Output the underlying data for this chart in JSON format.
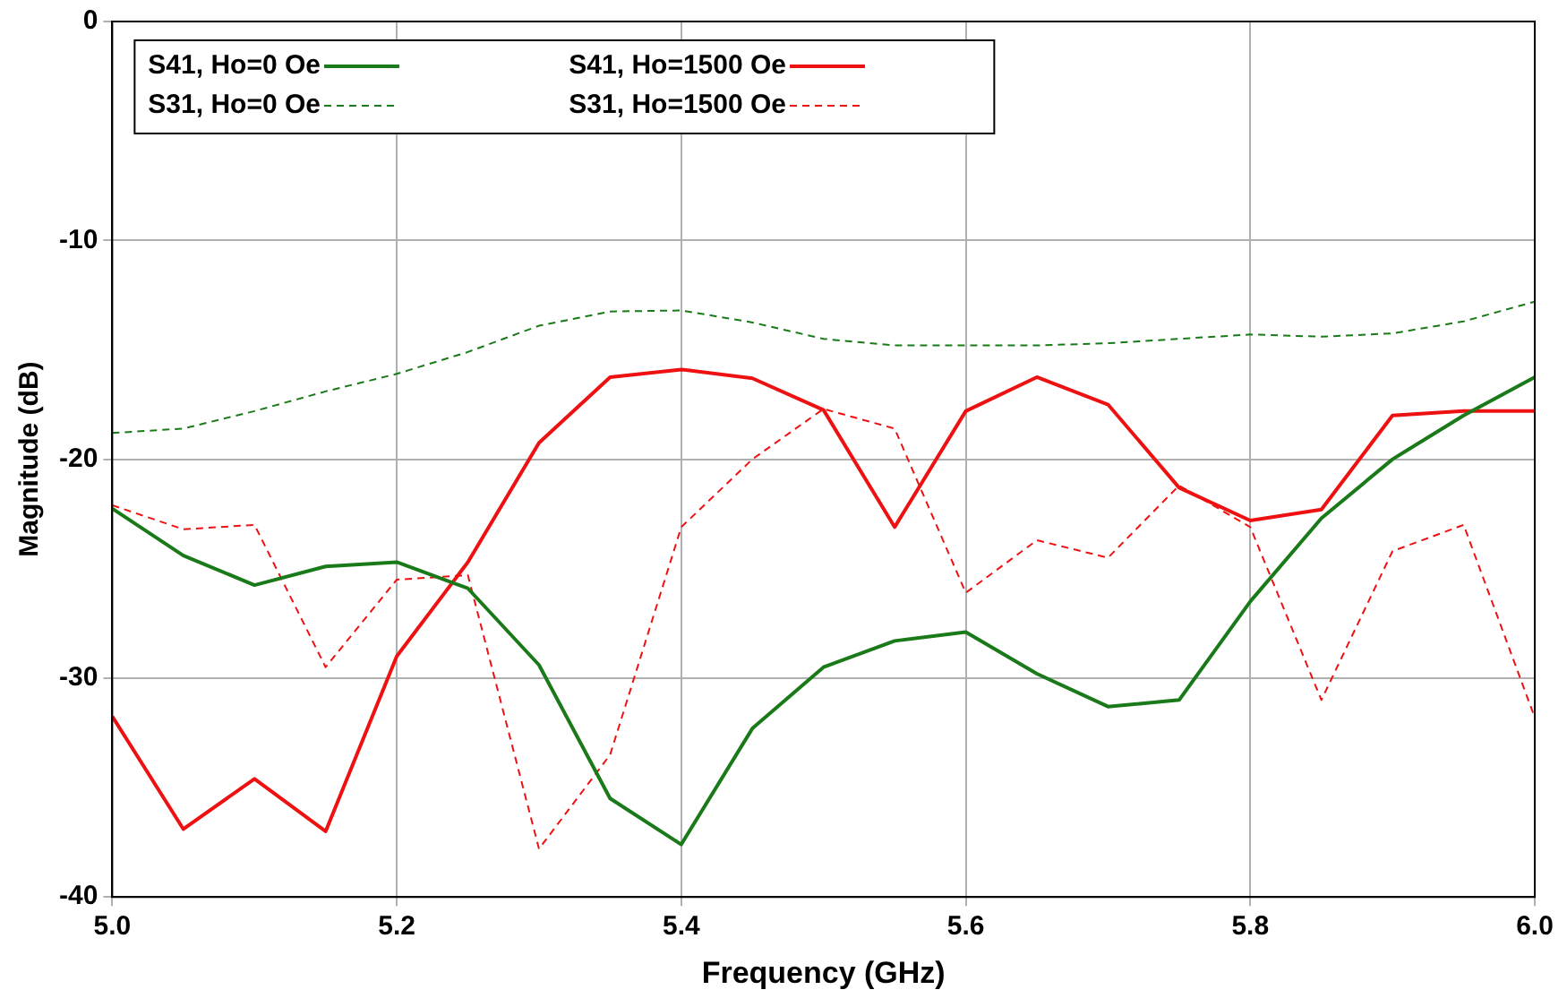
{
  "chart_data": {
    "type": "line",
    "xlabel": "Frequency (GHz)",
    "ylabel": "Magnitude (dB)",
    "x": [
      5.0,
      5.05,
      5.1,
      5.15,
      5.2,
      5.25,
      5.3,
      5.35,
      5.4,
      5.45,
      5.5,
      5.55,
      5.6,
      5.65,
      5.7,
      5.75,
      5.8,
      5.85,
      5.9,
      5.95,
      6.0
    ],
    "series": [
      {
        "name": "S41, Ho=0 Oe",
        "color": "#1a7a1a",
        "line_style": "solid",
        "values": [
          -22.25,
          -24.4,
          -25.75,
          -24.9,
          -24.7,
          -25.9,
          -29.4,
          -35.5,
          -37.6,
          -32.3,
          -29.5,
          -28.3,
          -27.9,
          -29.8,
          -31.3,
          -31.0,
          -26.5,
          -22.7,
          -20.0,
          -18.0,
          -16.25
        ]
      },
      {
        "name": "S41, Ho=1500 Oe",
        "color": "#ee1111",
        "line_style": "solid",
        "values": [
          -31.75,
          -36.9,
          -34.6,
          -37.0,
          -29.0,
          -24.7,
          -19.25,
          -16.25,
          -15.9,
          -16.3,
          -17.75,
          -23.1,
          -17.8,
          -16.25,
          -17.5,
          -21.3,
          -22.8,
          -22.3,
          -18.0,
          -17.8,
          -17.8
        ]
      },
      {
        "name": "S31, Ho=0 Oe",
        "color": "#1a7a1a",
        "line_style": "dashed",
        "values": [
          -18.8,
          -18.6,
          -17.8,
          -16.9,
          -16.1,
          -15.1,
          -13.9,
          -13.25,
          -13.2,
          -13.75,
          -14.5,
          -14.8,
          -14.8,
          -14.8,
          -14.7,
          -14.5,
          -14.3,
          -14.4,
          -14.25,
          -13.7,
          -12.8
        ]
      },
      {
        "name": "S31, Ho=1500 Oe",
        "color": "#ee1111",
        "line_style": "dashed",
        "values": [
          -22.1,
          -23.2,
          -23.0,
          -29.5,
          -25.5,
          -25.3,
          -37.8,
          -33.5,
          -23.1,
          -20.0,
          -17.7,
          -18.6,
          -26.1,
          -23.7,
          -24.5,
          -21.2,
          -23.1,
          -31.0,
          -24.2,
          -23.0,
          -31.8
        ]
      }
    ],
    "xlim": [
      5.0,
      6.0
    ],
    "xticks": [
      {
        "value": 5.0,
        "label": "5.0"
      },
      {
        "value": 5.2,
        "label": "5.2"
      },
      {
        "value": 5.4,
        "label": "5.4"
      },
      {
        "value": 5.6,
        "label": "5.6"
      },
      {
        "value": 5.8,
        "label": "5.8"
      },
      {
        "value": 6.0,
        "label": "6.0"
      }
    ],
    "ylim": [
      -40,
      0
    ],
    "yticks": [
      -40,
      -30,
      -20,
      -10,
      0
    ],
    "grid": true,
    "legend": "top left",
    "marker": "none"
  }
}
